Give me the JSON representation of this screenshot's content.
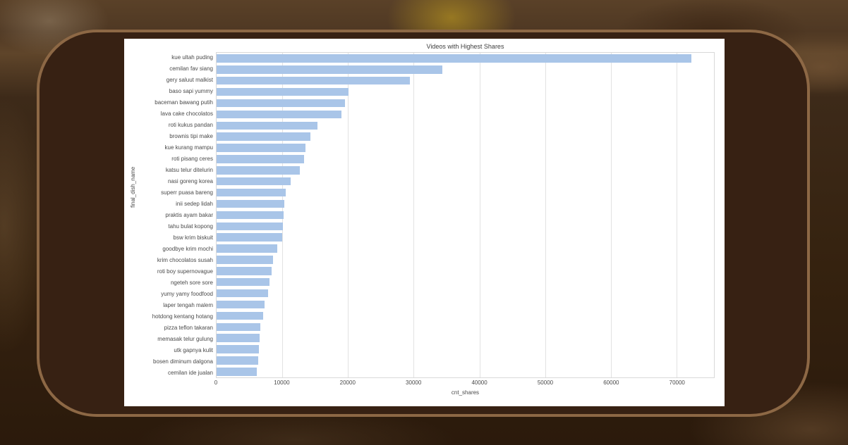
{
  "frame": {
    "border_color": "#8d6845",
    "fill_color": "#372113"
  },
  "chart_data": {
    "type": "bar",
    "orientation": "horizontal",
    "title": "Videos with Highest Shares",
    "xlabel": "cnt_shares",
    "ylabel": "final_dish_name",
    "bar_color": "#a9c5e8",
    "grid": true,
    "xlim": [
      0,
      75700
    ],
    "x_ticks": [
      0,
      10000,
      20000,
      30000,
      40000,
      50000,
      60000,
      70000
    ],
    "categories": [
      "kue ultah puding",
      "cemilan fav siang",
      "gery saluut malkist",
      "baso sapi yummy",
      "baceman bawang putih",
      "lava cake chocolatos",
      "roti kukus pandan",
      "brownis tipi make",
      "kue kurang mampu",
      "roti pisang ceres",
      "katsu telur ditelurin",
      "nasi goreng korea",
      "superr puasa bareng",
      "inii sedep lidah",
      "praktis ayam bakar",
      "tahu bulat kopong",
      "bsw krim biskuit",
      "goodbye krim mochi",
      "krim chocolatos susah",
      "roti boy supernovague",
      "ngeteh sore sore",
      "yumy yamy foodfood",
      "laper tengah malem",
      "hotdong kentang hotang",
      "pizza teflon takaran",
      "memasak telur gulung",
      "utk gapnya kulit",
      "bosen diminum dalgona",
      "cemilan ide jualan"
    ],
    "values": [
      72300,
      34400,
      29400,
      20100,
      19500,
      19000,
      15400,
      14300,
      13500,
      13300,
      12700,
      11300,
      10500,
      10300,
      10200,
      10100,
      10000,
      9200,
      8600,
      8400,
      8000,
      7800,
      7300,
      7100,
      6700,
      6500,
      6450,
      6300,
      6100
    ]
  }
}
